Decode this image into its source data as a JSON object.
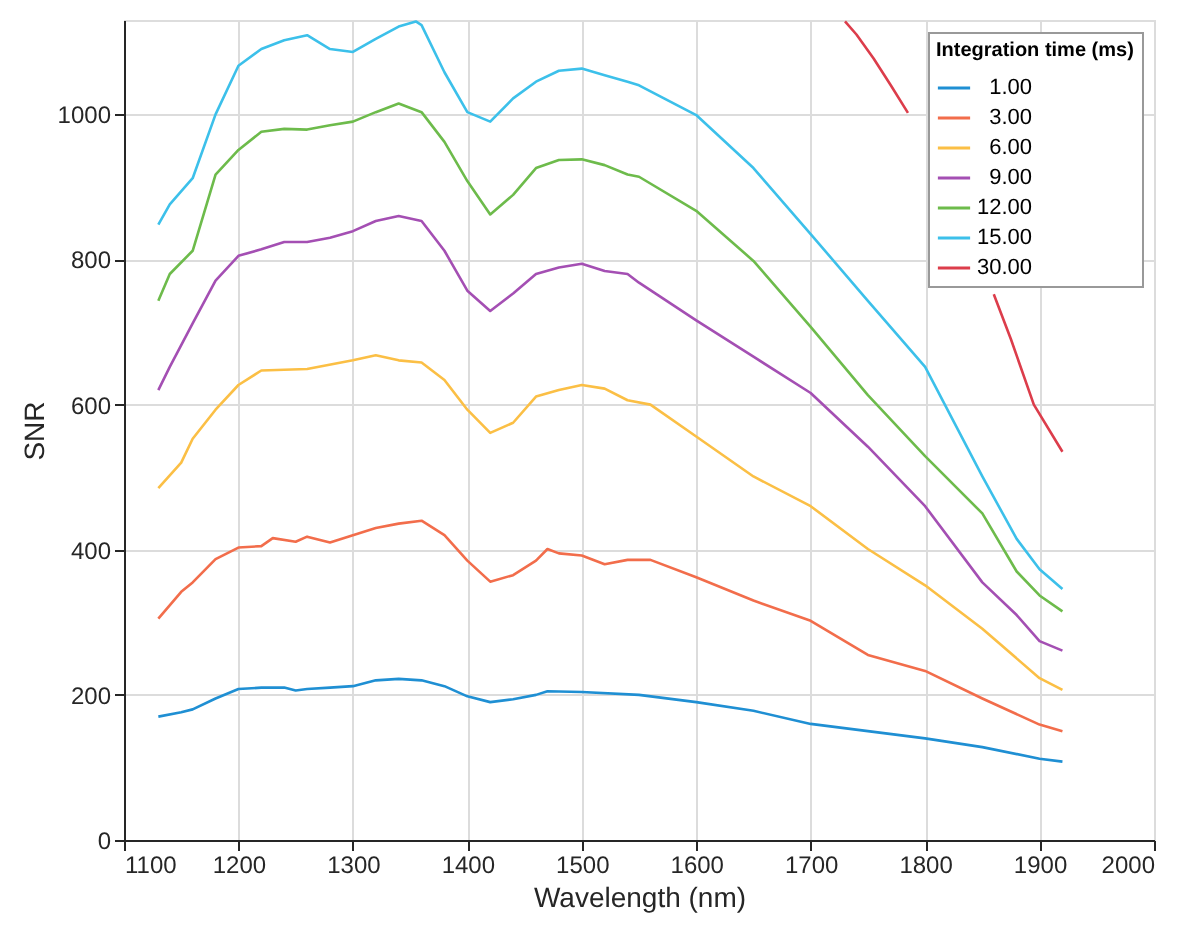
{
  "chart_data": {
    "type": "line",
    "xlabel": "Wavelength (nm)",
    "ylabel": "SNR",
    "legend_title": "Integration time (ms)",
    "legend": "top right",
    "grid": true,
    "line_style": "solid",
    "marker": "none",
    "xlim": [
      1100,
      2000
    ],
    "xticks": [
      1100,
      1200,
      1300,
      1400,
      1500,
      1600,
      1700,
      1800,
      1900,
      2000
    ],
    "ylim": [
      0,
      1130
    ],
    "yticks": [
      0,
      200,
      400,
      600,
      800,
      1000
    ],
    "series": [
      {
        "name": "1.00",
        "color": "#1f8fd3",
        "x": [
          1130,
          1150,
          1160,
          1180,
          1200,
          1220,
          1240,
          1250,
          1260,
          1280,
          1300,
          1320,
          1340,
          1360,
          1380,
          1400,
          1420,
          1440,
          1460,
          1470,
          1500,
          1550,
          1600,
          1650,
          1700,
          1750,
          1800,
          1850,
          1900,
          1920
        ],
        "values": [
          170,
          176,
          180,
          195,
          208,
          210,
          210,
          206,
          208,
          210,
          212,
          220,
          222,
          220,
          212,
          198,
          190,
          194,
          200,
          205,
          204,
          200,
          190,
          178,
          160,
          150,
          140,
          128,
          112,
          108
        ]
      },
      {
        "name": "3.00",
        "color": "#f26d4b",
        "x": [
          1130,
          1150,
          1160,
          1180,
          1200,
          1220,
          1230,
          1250,
          1260,
          1280,
          1300,
          1320,
          1340,
          1360,
          1380,
          1400,
          1420,
          1440,
          1460,
          1470,
          1480,
          1500,
          1520,
          1540,
          1560,
          1600,
          1650,
          1700,
          1750,
          1800,
          1850,
          1900,
          1920
        ],
        "values": [
          305,
          342,
          355,
          387,
          403,
          405,
          416,
          411,
          418,
          410,
          420,
          430,
          436,
          440,
          420,
          385,
          356,
          365,
          385,
          401,
          395,
          392,
          380,
          386,
          386,
          362,
          330,
          302,
          255,
          233,
          195,
          159,
          150
        ]
      },
      {
        "name": "6.00",
        "color": "#fbbf45",
        "x": [
          1130,
          1150,
          1160,
          1180,
          1200,
          1220,
          1260,
          1300,
          1320,
          1340,
          1360,
          1380,
          1400,
          1420,
          1440,
          1460,
          1480,
          1500,
          1520,
          1540,
          1560,
          1600,
          1650,
          1700,
          1750,
          1800,
          1850,
          1900,
          1920
        ],
        "values": [
          485,
          520,
          553,
          593,
          627,
          647,
          649,
          661,
          668,
          661,
          658,
          634,
          593,
          561,
          575,
          611,
          620,
          627,
          622,
          606,
          600,
          556,
          501,
          460,
          401,
          351,
          291,
          223,
          207
        ]
      },
      {
        "name": "9.00",
        "color": "#a44fb3",
        "x": [
          1130,
          1140,
          1160,
          1180,
          1200,
          1220,
          1240,
          1260,
          1280,
          1300,
          1320,
          1340,
          1360,
          1380,
          1400,
          1420,
          1440,
          1460,
          1480,
          1500,
          1520,
          1540,
          1550,
          1600,
          1650,
          1700,
          1750,
          1800,
          1850,
          1880,
          1900,
          1920
        ],
        "values": [
          620,
          652,
          712,
          771,
          805,
          814,
          824,
          824,
          830,
          839,
          853,
          860,
          853,
          812,
          757,
          729,
          753,
          780,
          789,
          794,
          784,
          780,
          768,
          716,
          666,
          616,
          542,
          460,
          355,
          310,
          274,
          261
        ]
      },
      {
        "name": "12.00",
        "color": "#6dbb4b",
        "x": [
          1130,
          1140,
          1160,
          1180,
          1200,
          1220,
          1240,
          1260,
          1280,
          1300,
          1320,
          1340,
          1360,
          1380,
          1400,
          1420,
          1440,
          1460,
          1480,
          1500,
          1520,
          1540,
          1550,
          1600,
          1650,
          1700,
          1750,
          1800,
          1850,
          1880,
          1900,
          1920
        ],
        "values": [
          743,
          780,
          812,
          917,
          951,
          976,
          980,
          979,
          985,
          990,
          1003,
          1015,
          1003,
          962,
          908,
          862,
          889,
          926,
          937,
          938,
          930,
          917,
          914,
          867,
          798,
          707,
          613,
          529,
          450,
          370,
          337,
          315
        ]
      },
      {
        "name": "15.00",
        "color": "#3cc0ea",
        "x": [
          1130,
          1140,
          1160,
          1180,
          1200,
          1220,
          1240,
          1260,
          1280,
          1300,
          1320,
          1340,
          1355,
          1360,
          1380,
          1400,
          1420,
          1440,
          1460,
          1480,
          1500,
          1520,
          1540,
          1550,
          1600,
          1650,
          1700,
          1750,
          1800,
          1850,
          1880,
          1900,
          1920
        ],
        "values": [
          848,
          876,
          912,
          1000,
          1067,
          1090,
          1102,
          1109,
          1090,
          1086,
          1104,
          1121,
          1128,
          1123,
          1058,
          1003,
          990,
          1022,
          1045,
          1060,
          1063,
          1054,
          1045,
          1040,
          999,
          926,
          835,
          743,
          652,
          501,
          415,
          373,
          346
        ]
      },
      {
        "name": "30.00",
        "color": "#dc3d4b",
        "x": [
          1730,
          1740,
          1755,
          1770,
          1785,
          1820,
          1860,
          1875,
          1895,
          1920
        ],
        "values": [
          1128,
          1110,
          1077,
          1040,
          1002,
          null,
          752,
          690,
          600,
          535
        ]
      }
    ]
  }
}
